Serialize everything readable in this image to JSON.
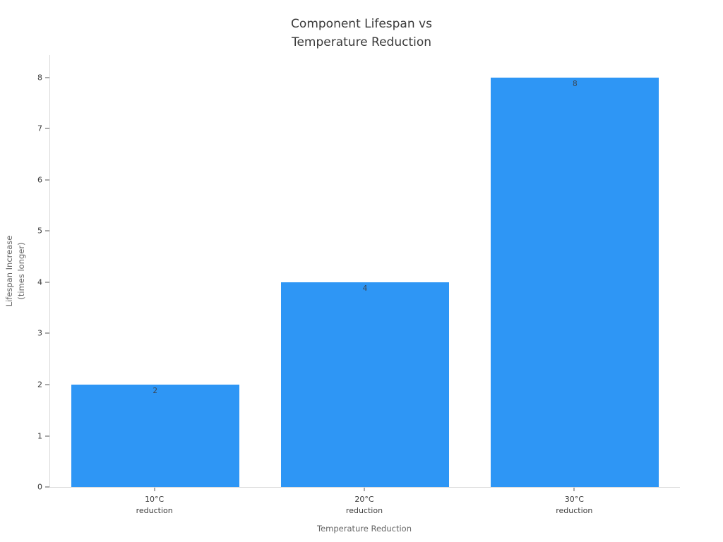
{
  "chart_data": {
    "type": "bar",
    "title": "Component Lifespan vs\nTemperature Reduction",
    "categories": [
      "10°C\nreduction",
      "20°C\nreduction",
      "30°C\nreduction"
    ],
    "values": [
      2,
      4,
      8
    ],
    "bar_labels": [
      "2",
      "4",
      "8"
    ],
    "xlabel": "Temperature Reduction",
    "ylabel": "Lifespan Increase\n(times longer)",
    "yticks": [
      0,
      1,
      2,
      3,
      4,
      5,
      6,
      7,
      8
    ],
    "ylim": [
      0,
      8.44
    ],
    "grid": false,
    "legend_position": "none",
    "bar_width_fraction": 0.8,
    "colors": {
      "bar": "#2E96F5",
      "axis_line": "#d9d9d9",
      "tick_mark": "#555555",
      "tick_label": "#3b3b3b",
      "axis_title": "#666666",
      "title": "#3a3a3a",
      "bar_label": "#3a4654",
      "background": "#ffffff"
    }
  }
}
